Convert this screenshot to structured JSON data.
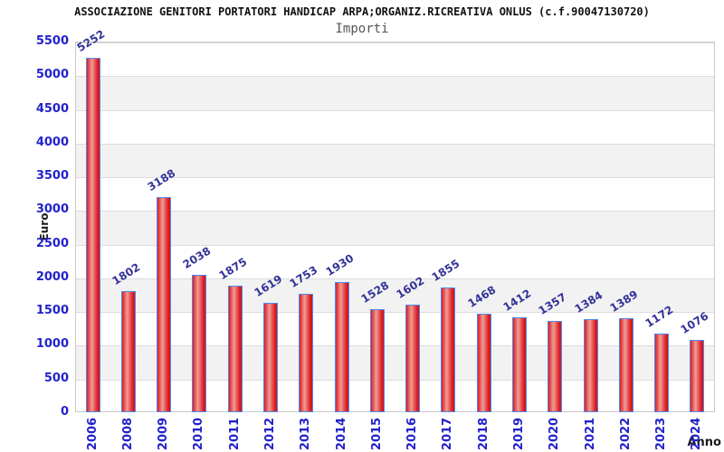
{
  "header": {
    "title": "ASSOCIAZIONE GENITORI PORTATORI HANDICAP ARPA;ORGANIZ.RICREATIVA ONLUS (c.f.90047130720)",
    "subtitle": "Importi"
  },
  "chart_data": {
    "type": "bar",
    "title": "Importi",
    "xlabel": "Anno",
    "ylabel": "Euro",
    "categories": [
      "2006",
      "2008",
      "2009",
      "2010",
      "2011",
      "2012",
      "2013",
      "2014",
      "2015",
      "2016",
      "2017",
      "2018",
      "2019",
      "2020",
      "2021",
      "2022",
      "2023",
      "2024"
    ],
    "values": [
      5252,
      1802,
      3188,
      2038,
      1875,
      1619,
      1753,
      1930,
      1528,
      1602,
      1855,
      1468,
      1412,
      1357,
      1384,
      1389,
      1172,
      1076
    ],
    "ylim": [
      0,
      5500
    ],
    "ytick_step": 500,
    "grid": true,
    "legend": "none",
    "colors": {
      "bar_edge_fill": "#de1b22",
      "bar_dark_fill": "#c8161c",
      "bar_highlight": "#ef9d94",
      "bar_border": "#4d8af0",
      "tick_label": "#2222cc",
      "value_label": "#333399",
      "band_gray": "#f2f2f2",
      "gridline": "#dcdcdc",
      "plot_border": "#c9c9c9",
      "title_text": "#111111",
      "subtitle_text": "#555555",
      "axis_title_text": "#1a1a1a",
      "background": "#ffffff"
    }
  }
}
